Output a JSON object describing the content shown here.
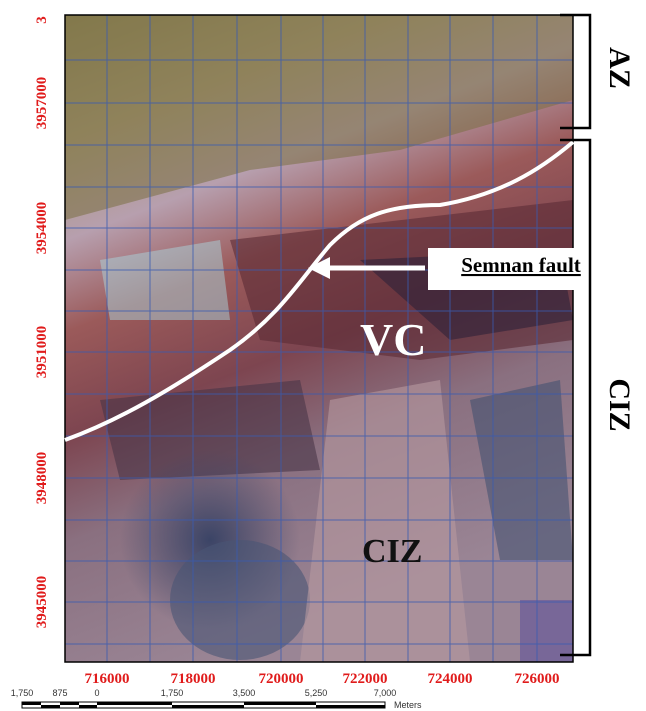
{
  "map": {
    "y_labels": [
      "3",
      "3957000",
      "3954000",
      "3951000",
      "3948000",
      "3945000"
    ],
    "x_labels": [
      "716000",
      "718000",
      "720000",
      "722000",
      "724000",
      "726000"
    ],
    "scale_labels": [
      "1,750",
      "875",
      "0",
      "1,750",
      "3,500",
      "5,250",
      "7,000"
    ],
    "scale_unit": "Meters",
    "annotations": {
      "zone_top": "AZ",
      "zone_right": "CIZ",
      "fault": "Semnan fault",
      "complex": "VC",
      "zone_center": "CIZ"
    }
  }
}
